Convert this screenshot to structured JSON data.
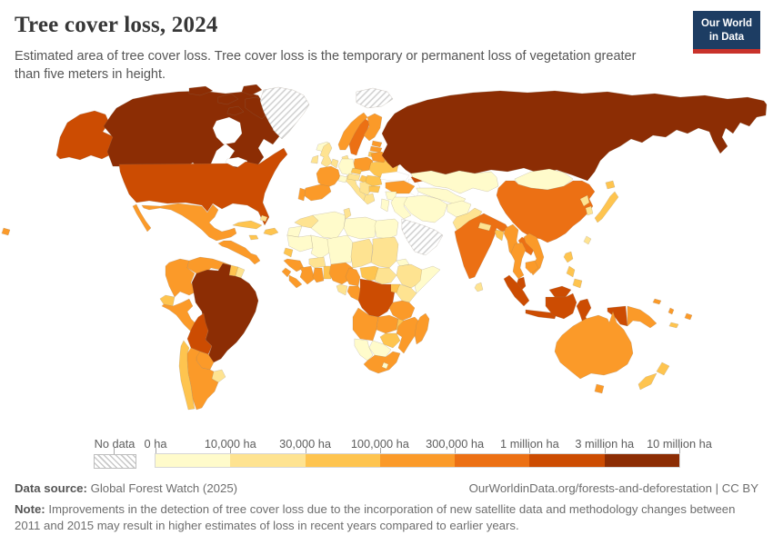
{
  "header": {
    "title": "Tree cover loss, 2024",
    "subtitle": "Estimated area of tree cover loss. Tree cover loss is the temporary or permanent loss of vegetation greater than five meters in height.",
    "logo": {
      "line1": "Our World",
      "line2": "in Data",
      "bg_color": "#1d3d63",
      "accent_color": "#c9322b"
    }
  },
  "legend": {
    "no_data_label": "No data"
  },
  "footer": {
    "source_label": "Data source:",
    "source_value": "Global Forest Watch (2025)",
    "rights": "OurWorldinData.org/forests-and-deforestation | CC BY",
    "note_label": "Note:",
    "note_text": "Improvements in the detection of tree cover loss due to the incorporation of new satellite data and methodology changes between 2011 and 2015 may result in higher estimates of loss in recent years compared to earlier years."
  },
  "chart_data": {
    "type": "heatmap",
    "subtype": "choropleth-world-map",
    "title": "Tree cover loss, 2024",
    "unit": "hectares of tree cover loss",
    "legend_boundaries": [
      "0 ha",
      "10,000 ha",
      "30,000 ha",
      "100,000 ha",
      "300,000 ha",
      "1 million ha",
      "3 million ha",
      "10 million ha"
    ],
    "palette": [
      "#fffbcb",
      "#fee391",
      "#fec44f",
      "#fb9a29",
      "#ec7014",
      "#cc4c02",
      "#8c2d04"
    ],
    "ocean_color": "#ffffff",
    "border_color": "#8a7866",
    "no_data_pattern_color": "#d2d2d2",
    "bin_meaning": "bin index 1-7 maps to palette colors between the legend boundaries; bin 0 = no data (hatched)",
    "countries": [
      {
        "id": "united-states",
        "bin": 6
      },
      {
        "id": "canada",
        "bin": 7
      },
      {
        "id": "greenland",
        "bin": 0
      },
      {
        "id": "svalbard",
        "bin": 0
      },
      {
        "id": "iceland",
        "bin": 1
      },
      {
        "id": "mexico",
        "bin": 4
      },
      {
        "id": "central-america",
        "bin": 4
      },
      {
        "id": "cuba",
        "bin": 3
      },
      {
        "id": "hispaniola",
        "bin": 3
      },
      {
        "id": "jamaica",
        "bin": 3
      },
      {
        "id": "bahamas",
        "bin": 2
      },
      {
        "id": "colombia",
        "bin": 4
      },
      {
        "id": "venezuela",
        "bin": 4
      },
      {
        "id": "guyana",
        "bin": 4
      },
      {
        "id": "suriname",
        "bin": 3
      },
      {
        "id": "french-guiana",
        "bin": 2
      },
      {
        "id": "ecuador",
        "bin": 3
      },
      {
        "id": "peru",
        "bin": 4
      },
      {
        "id": "brazil",
        "bin": 7
      },
      {
        "id": "bolivia",
        "bin": 6
      },
      {
        "id": "paraguay",
        "bin": 4
      },
      {
        "id": "uruguay",
        "bin": 2
      },
      {
        "id": "argentina",
        "bin": 4
      },
      {
        "id": "chile",
        "bin": 3
      },
      {
        "id": "morocco",
        "bin": 2
      },
      {
        "id": "western-sahara",
        "bin": 1
      },
      {
        "id": "mauritania",
        "bin": 1
      },
      {
        "id": "mali",
        "bin": 1
      },
      {
        "id": "senegal",
        "bin": 3
      },
      {
        "id": "guinea",
        "bin": 4
      },
      {
        "id": "sierra-leone",
        "bin": 4
      },
      {
        "id": "liberia",
        "bin": 4
      },
      {
        "id": "cote-divoire",
        "bin": 4
      },
      {
        "id": "ghana",
        "bin": 4
      },
      {
        "id": "togo-benin",
        "bin": 3
      },
      {
        "id": "burkina-faso",
        "bin": 2
      },
      {
        "id": "nigeria",
        "bin": 4
      },
      {
        "id": "algeria",
        "bin": 1
      },
      {
        "id": "tunisia",
        "bin": 2
      },
      {
        "id": "libya",
        "bin": 1
      },
      {
        "id": "egypt",
        "bin": 1
      },
      {
        "id": "niger",
        "bin": 1
      },
      {
        "id": "chad",
        "bin": 2
      },
      {
        "id": "sudan",
        "bin": 2
      },
      {
        "id": "eritrea",
        "bin": 1
      },
      {
        "id": "ethiopia",
        "bin": 2
      },
      {
        "id": "somalia",
        "bin": 1
      },
      {
        "id": "cameroon",
        "bin": 4
      },
      {
        "id": "central-african-republic",
        "bin": 3
      },
      {
        "id": "south-sudan",
        "bin": 2
      },
      {
        "id": "congo",
        "bin": 4
      },
      {
        "id": "gabon",
        "bin": 2
      },
      {
        "id": "drc",
        "bin": 6
      },
      {
        "id": "uganda",
        "bin": 3
      },
      {
        "id": "kenya",
        "bin": 2
      },
      {
        "id": "tanzania",
        "bin": 4
      },
      {
        "id": "angola",
        "bin": 4
      },
      {
        "id": "zambia",
        "bin": 4
      },
      {
        "id": "malawi",
        "bin": 3
      },
      {
        "id": "mozambique",
        "bin": 4
      },
      {
        "id": "zimbabwe",
        "bin": 3
      },
      {
        "id": "botswana",
        "bin": 1
      },
      {
        "id": "namibia",
        "bin": 1
      },
      {
        "id": "south-africa",
        "bin": 4
      },
      {
        "id": "lesotho",
        "bin": 1
      },
      {
        "id": "madagascar",
        "bin": 4
      },
      {
        "id": "uk",
        "bin": 2
      },
      {
        "id": "ireland",
        "bin": 2
      },
      {
        "id": "norway",
        "bin": 4
      },
      {
        "id": "sweden",
        "bin": 5
      },
      {
        "id": "finland",
        "bin": 4
      },
      {
        "id": "denmark",
        "bin": 2
      },
      {
        "id": "estonia",
        "bin": 4
      },
      {
        "id": "latvia",
        "bin": 4
      },
      {
        "id": "lithuania",
        "bin": 3
      },
      {
        "id": "russia",
        "bin": 7
      },
      {
        "id": "poland",
        "bin": 4
      },
      {
        "id": "germany",
        "bin": 1
      },
      {
        "id": "netherlands-belgium",
        "bin": 2
      },
      {
        "id": "france",
        "bin": 4
      },
      {
        "id": "spain",
        "bin": 4
      },
      {
        "id": "portugal",
        "bin": 4
      },
      {
        "id": "italy",
        "bin": 2
      },
      {
        "id": "switzerland",
        "bin": 1
      },
      {
        "id": "austria",
        "bin": 2
      },
      {
        "id": "czechia",
        "bin": 3
      },
      {
        "id": "hungary",
        "bin": 3
      },
      {
        "id": "balkans",
        "bin": 2
      },
      {
        "id": "greece",
        "bin": 2
      },
      {
        "id": "romania",
        "bin": 3
      },
      {
        "id": "bulgaria",
        "bin": 3
      },
      {
        "id": "ukraine",
        "bin": 3
      },
      {
        "id": "belarus",
        "bin": 4
      },
      {
        "id": "turkey",
        "bin": 4
      },
      {
        "id": "georgia",
        "bin": 6
      },
      {
        "id": "syria",
        "bin": 1
      },
      {
        "id": "israel-jordan",
        "bin": 1
      },
      {
        "id": "iraq",
        "bin": 1
      },
      {
        "id": "iran",
        "bin": 1
      },
      {
        "id": "arabia",
        "bin": 0
      },
      {
        "id": "kazakhstan",
        "bin": 1
      },
      {
        "id": "central-asia",
        "bin": 1
      },
      {
        "id": "afghanistan",
        "bin": 1
      },
      {
        "id": "pakistan",
        "bin": 2
      },
      {
        "id": "india",
        "bin": 5
      },
      {
        "id": "nepal",
        "bin": 2
      },
      {
        "id": "bangladesh",
        "bin": 3
      },
      {
        "id": "sri-lanka",
        "bin": 2
      },
      {
        "id": "mongolia",
        "bin": 1
      },
      {
        "id": "china",
        "bin": 5
      },
      {
        "id": "north-korea",
        "bin": 2
      },
      {
        "id": "south-korea",
        "bin": 2
      },
      {
        "id": "japan",
        "bin": 3
      },
      {
        "id": "taiwan",
        "bin": 2
      },
      {
        "id": "myanmar",
        "bin": 4
      },
      {
        "id": "laos",
        "bin": 5
      },
      {
        "id": "thailand",
        "bin": 4
      },
      {
        "id": "vietnam",
        "bin": 4
      },
      {
        "id": "cambodia",
        "bin": 4
      },
      {
        "id": "philippines",
        "bin": 3
      },
      {
        "id": "malaysia",
        "bin": 6
      },
      {
        "id": "indonesia",
        "bin": 6
      },
      {
        "id": "papua-new-guinea",
        "bin": 4
      },
      {
        "id": "timor",
        "bin": 3
      },
      {
        "id": "australia",
        "bin": 4
      },
      {
        "id": "new-zealand",
        "bin": 3
      },
      {
        "id": "fiji",
        "bin": 4
      },
      {
        "id": "new-caledonia",
        "bin": 3
      },
      {
        "id": "vanuatu",
        "bin": 4
      },
      {
        "id": "solomon-islands",
        "bin": 4
      }
    ]
  }
}
